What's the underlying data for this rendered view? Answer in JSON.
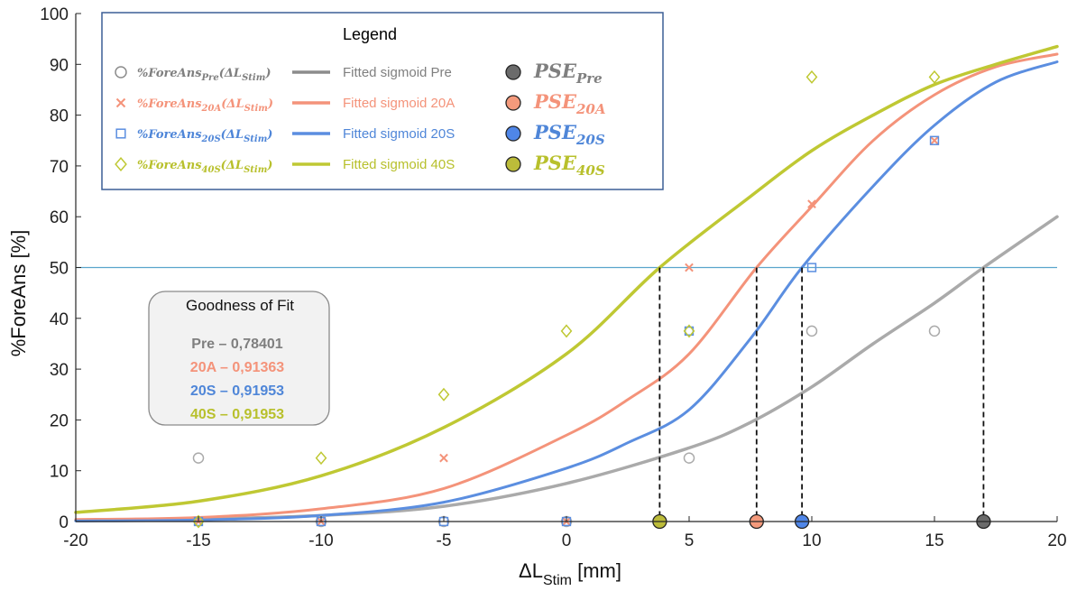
{
  "chart_data": {
    "type": "line",
    "xlabel_main": "ΔL",
    "xlabel_sub": "Stim",
    "xlabel_unit": " [mm]",
    "ylabel": "%ForeAns [%]",
    "xlim": [
      -20,
      20
    ],
    "ylim": [
      0,
      100
    ],
    "xticks": [
      "-20",
      "-15",
      "-10",
      "-5",
      "0",
      "5",
      "10",
      "15",
      "20"
    ],
    "yticks": [
      "0",
      "10",
      "20",
      "30",
      "40",
      "50",
      "60",
      "70",
      "80",
      "90",
      "100"
    ],
    "threshold": 50,
    "threshold_color": "#5aa5cc",
    "legend": {
      "title": "Legend",
      "entries": [
        {
          "sym": "circle",
          "ser_main": "%ForeAns",
          "ser_sub": "Pre",
          "ser_rest": "(ΔL",
          "ser_sub2": "Stim",
          "ser_end": ")",
          "fit": "Fitted sigmoid Pre",
          "pse_main": "PSE",
          "pse_sub": "Pre",
          "color": "#8c8c8c",
          "text_color": "#7f7f7f",
          "pse_fill": "#6b6b6b"
        },
        {
          "sym": "cross",
          "ser_main": "%ForeAns",
          "ser_sub": "20A",
          "ser_rest": "(ΔL",
          "ser_sub2": "Stim",
          "ser_end": ")",
          "fit": "Fitted sigmoid 20A",
          "pse_main": "PSE",
          "pse_sub": "20A",
          "color": "#f4937a",
          "text_color": "#f4937a",
          "pse_fill": "#f49a7c"
        },
        {
          "sym": "square",
          "ser_main": "%ForeAns",
          "ser_sub": "20S",
          "ser_rest": "(ΔL",
          "ser_sub2": "Stim",
          "ser_end": ")",
          "fit": "Fitted sigmoid 20S",
          "pse_main": "PSE",
          "pse_sub": "20S",
          "color": "#5b8ee0",
          "text_color": "#4f86d8",
          "pse_fill": "#4f86e8"
        },
        {
          "sym": "diamond",
          "ser_main": "%ForeAns",
          "ser_sub": "40S",
          "ser_rest": "(ΔL",
          "ser_sub2": "Stim",
          "ser_end": ")",
          "fit": "Fitted sigmoid 40S",
          "pse_main": "PSE",
          "pse_sub": "40S",
          "color": "#bfc833",
          "text_color": "#b8c02c",
          "pse_fill": "#bcbc3a"
        }
      ]
    },
    "goodness": {
      "title": "Goodness of Fit",
      "lines": [
        "Pre – 0,78401",
        "20A – 0,91363",
        "20S – 0,91953",
        "40S – 0,91953"
      ]
    },
    "series": [
      {
        "name": "Pre",
        "color": "#aaaaaa",
        "fit_width": 3.5,
        "fit": [
          [
            -20,
            0.2
          ],
          [
            -15,
            0.5
          ],
          [
            -10,
            1.2
          ],
          [
            -5,
            3.0
          ],
          [
            0,
            7.5
          ],
          [
            5,
            14.5
          ],
          [
            7.5,
            19.5
          ],
          [
            10,
            26.5
          ],
          [
            12.5,
            35
          ],
          [
            15,
            43
          ],
          [
            17,
            50
          ],
          [
            20,
            60
          ]
        ],
        "points": [
          [
            -15,
            12.5
          ],
          [
            -10,
            0
          ],
          [
            -5,
            0
          ],
          [
            0,
            0
          ],
          [
            5,
            12.5
          ],
          [
            10,
            37.5
          ],
          [
            15,
            37.5
          ]
        ],
        "pse": 17.0
      },
      {
        "name": "20A",
        "color": "#f4937a",
        "fit_width": 3,
        "fit": [
          [
            -20,
            0.4
          ],
          [
            -15,
            0.8
          ],
          [
            -10,
            2.5
          ],
          [
            -5,
            6.5
          ],
          [
            0,
            17
          ],
          [
            2.5,
            24
          ],
          [
            5,
            33
          ],
          [
            7.75,
            50
          ],
          [
            10,
            62
          ],
          [
            12.5,
            75
          ],
          [
            15,
            84
          ],
          [
            17.5,
            89.5
          ],
          [
            20,
            92
          ]
        ],
        "points": [
          [
            -15,
            0
          ],
          [
            -10,
            0
          ],
          [
            -5,
            12.5
          ],
          [
            0,
            0
          ],
          [
            5,
            50
          ],
          [
            10,
            62.5
          ],
          [
            15,
            75
          ]
        ],
        "pse": 7.75
      },
      {
        "name": "20S",
        "color": "#5b8ee0",
        "fit_width": 3,
        "fit": [
          [
            -20,
            0.1
          ],
          [
            -15,
            0.3
          ],
          [
            -10,
            1.2
          ],
          [
            -5,
            3.8
          ],
          [
            0,
            10.5
          ],
          [
            2.5,
            15.5
          ],
          [
            5,
            22
          ],
          [
            7.5,
            36
          ],
          [
            9.6,
            50
          ],
          [
            12.5,
            66
          ],
          [
            15,
            78
          ],
          [
            17.5,
            86.5
          ],
          [
            20,
            90.5
          ]
        ],
        "points": [
          [
            -15,
            0
          ],
          [
            -10,
            0
          ],
          [
            -5,
            0
          ],
          [
            0,
            0
          ],
          [
            5,
            37.5
          ],
          [
            10,
            50
          ],
          [
            15,
            75
          ]
        ],
        "pse": 9.6
      },
      {
        "name": "40S",
        "color": "#bfc833",
        "fit_width": 3.5,
        "fit": [
          [
            -20,
            1.8
          ],
          [
            -15,
            4.0
          ],
          [
            -10,
            9.0
          ],
          [
            -5,
            18.5
          ],
          [
            0,
            33
          ],
          [
            3.8,
            50
          ],
          [
            7.5,
            64
          ],
          [
            10,
            73
          ],
          [
            12.5,
            80
          ],
          [
            15,
            86
          ],
          [
            17.5,
            90
          ],
          [
            20,
            93.5
          ]
        ],
        "points": [
          [
            -15,
            0
          ],
          [
            -10,
            12.5
          ],
          [
            -5,
            25
          ],
          [
            0,
            37.5
          ],
          [
            5,
            37.5
          ],
          [
            10,
            87.5
          ],
          [
            15,
            87.5
          ]
        ],
        "pse": 3.8
      }
    ]
  }
}
